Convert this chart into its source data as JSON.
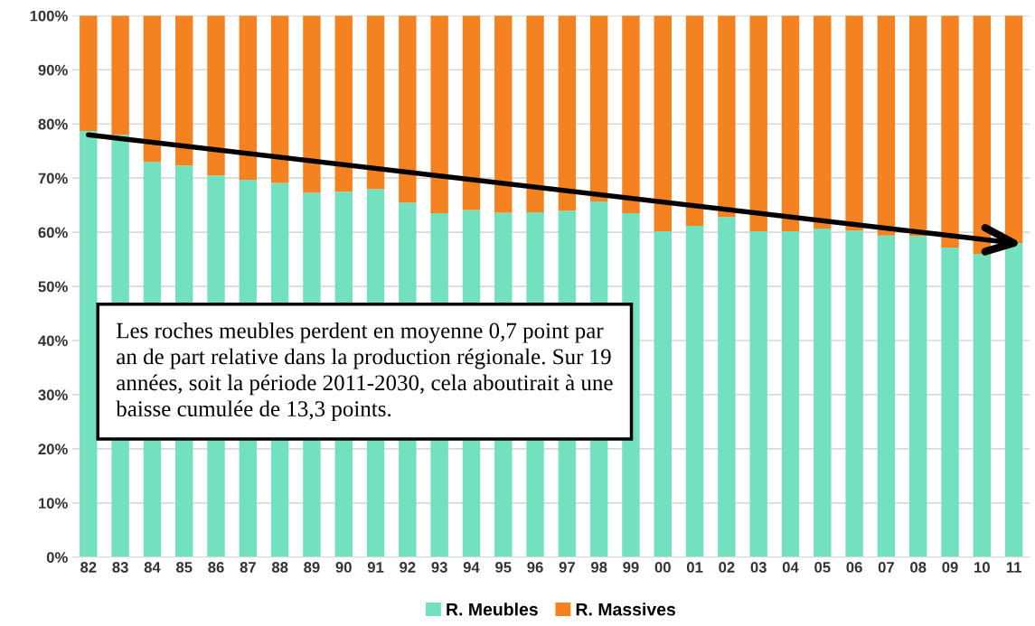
{
  "chart_data": {
    "type": "bar",
    "stacked": true,
    "categories": [
      "82",
      "83",
      "84",
      "85",
      "86",
      "87",
      "88",
      "89",
      "90",
      "91",
      "92",
      "93",
      "94",
      "95",
      "96",
      "97",
      "98",
      "99",
      "00",
      "01",
      "02",
      "03",
      "04",
      "05",
      "06",
      "07",
      "08",
      "09",
      "10",
      "11"
    ],
    "series": [
      {
        "name": "R. Meubles",
        "color": "#73e0bf",
        "values": [
          78.7,
          78,
          73,
          72.3,
          70.5,
          69.7,
          69.1,
          67.3,
          67.5,
          68,
          65.5,
          63.5,
          64.1,
          63.6,
          63.7,
          64,
          65.7,
          63.5,
          60.2,
          61.2,
          62.8,
          60.2,
          60.2,
          60.7,
          60.3,
          59.4,
          59.3,
          57.2,
          56,
          58
        ]
      },
      {
        "name": "R. Massives",
        "color": "#f58220",
        "values": [
          21.3,
          22,
          27,
          27.7,
          29.5,
          30.3,
          30.9,
          32.7,
          32.5,
          32,
          34.5,
          36.5,
          35.9,
          36.4,
          36.3,
          36,
          34.3,
          36.5,
          39.8,
          38.8,
          37.2,
          39.8,
          39.8,
          39.3,
          39.7,
          40.6,
          40.7,
          42.8,
          44,
          42
        ]
      },
      {
        "type": "line",
        "color": "#000000",
        "x": [
          "82",
          "11"
        ],
        "values": [
          78,
          58
        ]
      }
    ],
    "ylim": [
      0,
      100
    ],
    "yticks": [
      {
        "value": 0,
        "label": "0%"
      },
      {
        "value": 10,
        "label": "10%"
      },
      {
        "value": 20,
        "label": "20%"
      },
      {
        "value": 30,
        "label": "30%"
      },
      {
        "value": 40,
        "label": "40%"
      },
      {
        "value": 50,
        "label": "50%"
      },
      {
        "value": 60,
        "label": "60%"
      },
      {
        "value": 70,
        "label": "70%"
      },
      {
        "value": 80,
        "label": "80%"
      },
      {
        "value": 90,
        "label": "90%"
      },
      {
        "value": 100,
        "label": "100%"
      }
    ],
    "grid": "y",
    "legend": "bottom",
    "annotations": [
      "Les roches meubles perdent en moyenne 0,7 point par an de part relative dans la production régionale. Sur 19 années, soit la période 2011-2030, cela aboutirait à une baisse cumulée de 13,3 points."
    ]
  }
}
